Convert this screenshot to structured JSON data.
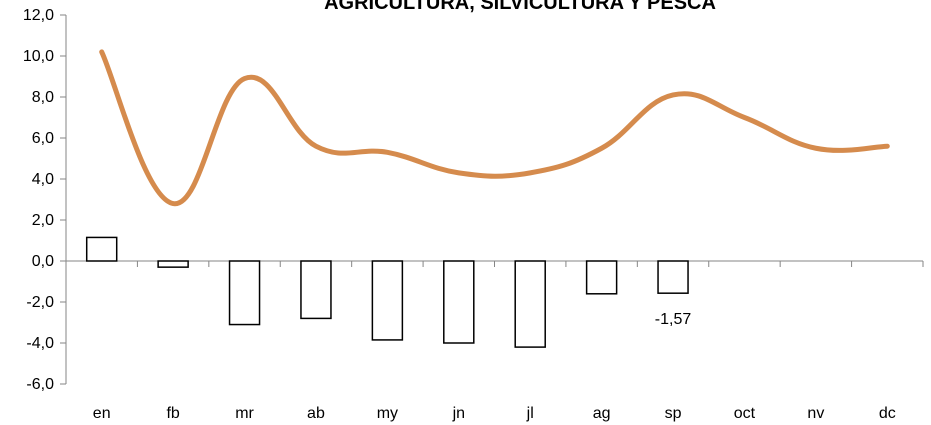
{
  "chart_data": {
    "type": "bar",
    "title": "AGRICULTURA, SILVICULTURA Y PESCA",
    "categories": [
      "en",
      "fb",
      "mr",
      "ab",
      "my",
      "jn",
      "jl",
      "ag",
      "sp",
      "oct",
      "nv",
      "dc"
    ],
    "series": [
      {
        "kind": "bar",
        "values": [
          1.15,
          -0.3,
          -3.1,
          -2.8,
          -3.85,
          -4.0,
          -4.2,
          -1.6,
          -1.57,
          null,
          null,
          null
        ],
        "fill": "#ffffff",
        "stroke": "#000000"
      },
      {
        "kind": "line",
        "values": [
          10.2,
          2.8,
          8.9,
          5.6,
          5.3,
          4.3,
          4.3,
          5.5,
          8.1,
          7.0,
          5.5,
          5.6
        ],
        "color": "#d58b4d"
      }
    ],
    "ylim": [
      -6,
      12
    ],
    "yticks": [
      "12,0",
      "10,0",
      "8,0",
      "6,0",
      "4,0",
      "2,0",
      "0,0",
      "-2,0",
      "-4,0",
      "-6,0"
    ],
    "data_labels": [
      {
        "category": "sp",
        "text": "-1,57"
      }
    ],
    "grid": false,
    "legend": "none"
  }
}
